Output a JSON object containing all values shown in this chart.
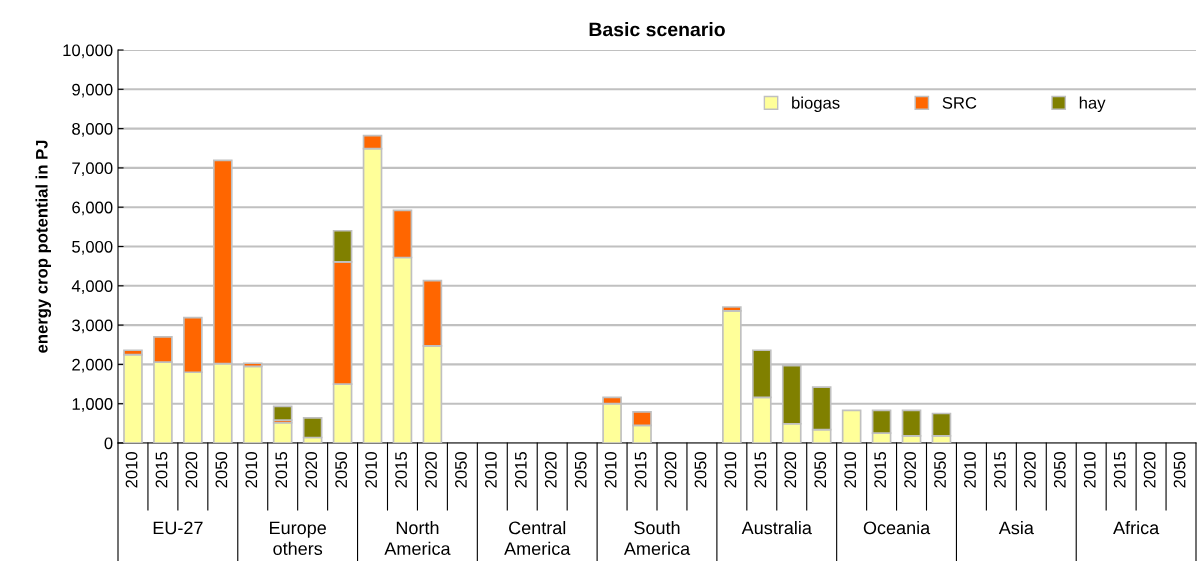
{
  "chart_data": {
    "type": "bar",
    "title": "Basic scenario",
    "ylabel": "energy crop potential in PJ",
    "stacked": true,
    "categories": [
      "2010",
      "2015",
      "2020",
      "2050",
      "2010",
      "2015",
      "2020",
      "2050",
      "2010",
      "2015",
      "2020",
      "2050",
      "2010",
      "2015",
      "2020",
      "2050",
      "2010",
      "2015",
      "2020",
      "2050",
      "2010",
      "2015",
      "2020",
      "2050",
      "2010",
      "2015",
      "2020",
      "2050",
      "2010",
      "2015",
      "2020",
      "2050",
      "2010",
      "2015",
      "2020",
      "2050"
    ],
    "series": [
      {
        "name": "biogas",
        "color": "#ffff99",
        "values": [
          2250,
          2060,
          1800,
          2020,
          1950,
          520,
          140,
          1500,
          7490,
          4720,
          2470,
          0,
          0,
          0,
          0,
          0,
          1000,
          450,
          0,
          0,
          3360,
          1160,
          490,
          340,
          830,
          250,
          180,
          180,
          0,
          0,
          0,
          0,
          0,
          0,
          0,
          0
        ]
      },
      {
        "name": "SRC",
        "color": "#ff6600",
        "values": [
          110,
          640,
          1390,
          5170,
          80,
          60,
          0,
          3110,
          330,
          1200,
          1660,
          0,
          0,
          0,
          0,
          0,
          160,
          340,
          0,
          0,
          100,
          0,
          0,
          0,
          0,
          0,
          0,
          0,
          0,
          0,
          0,
          0,
          0,
          0,
          0,
          0
        ]
      },
      {
        "name": "hay",
        "color": "#808000",
        "values": [
          0,
          0,
          0,
          0,
          0,
          350,
          500,
          790,
          0,
          0,
          0,
          0,
          0,
          0,
          0,
          0,
          0,
          0,
          0,
          0,
          0,
          1200,
          1480,
          1080,
          0,
          580,
          650,
          570,
          0,
          0,
          0,
          0,
          0,
          0,
          0,
          0
        ]
      }
    ],
    "annotations": [
      "EU-27",
      "Europe\nothers",
      "North\nAmerica",
      "Central\nAmerica",
      "South\nAmerica",
      "Australia",
      "Oceania",
      "Asia",
      "Africa"
    ],
    "ylim": [
      0,
      10000
    ],
    "yticks": [
      {
        "value": 0,
        "label": "0"
      },
      {
        "value": 1000,
        "label": "1,000"
      },
      {
        "value": 2000,
        "label": "2,000"
      },
      {
        "value": 3000,
        "label": "3,000"
      },
      {
        "value": 4000,
        "label": "4,000"
      },
      {
        "value": 5000,
        "label": "5,000"
      },
      {
        "value": 6000,
        "label": "6,000"
      },
      {
        "value": 7000,
        "label": "7,000"
      },
      {
        "value": 8000,
        "label": "8,000"
      },
      {
        "value": 9000,
        "label": "9,000"
      },
      {
        "value": 10000,
        "label": "10,000"
      }
    ],
    "grid": "y",
    "legend": "top right"
  }
}
